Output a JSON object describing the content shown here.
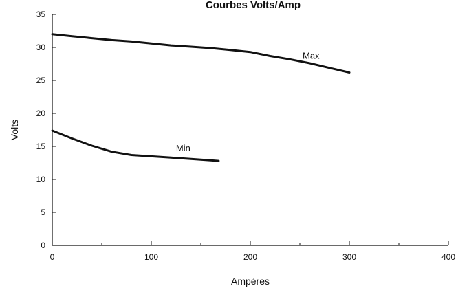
{
  "chart_data": {
    "type": "line",
    "title": "Courbes Volts/Amp",
    "xlabel": "Ampères",
    "ylabel": "Volts",
    "xlim": [
      0,
      400
    ],
    "ylim": [
      0,
      35
    ],
    "xticks": [
      0,
      100,
      200,
      300,
      400
    ],
    "yticks": [
      0,
      5,
      10,
      15,
      20,
      25,
      30,
      35
    ],
    "grid": false,
    "line_color": "#111111",
    "series": [
      {
        "name": "Max",
        "x": [
          0,
          20,
          40,
          60,
          80,
          100,
          120,
          140,
          160,
          180,
          200,
          220,
          240,
          260,
          280,
          300
        ],
        "y": [
          32.0,
          31.7,
          31.4,
          31.1,
          30.9,
          30.6,
          30.3,
          30.1,
          29.9,
          29.6,
          29.3,
          28.7,
          28.2,
          27.6,
          26.9,
          26.2
        ]
      },
      {
        "name": "Min",
        "x": [
          0,
          20,
          40,
          60,
          80,
          100,
          120,
          140,
          160,
          168
        ],
        "y": [
          17.4,
          16.2,
          15.1,
          14.2,
          13.7,
          13.5,
          13.3,
          13.1,
          12.9,
          12.8
        ]
      }
    ]
  }
}
